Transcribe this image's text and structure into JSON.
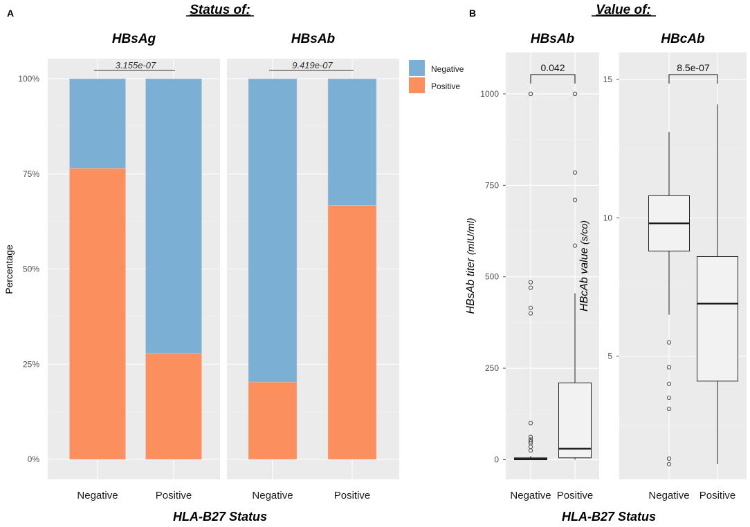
{
  "panel_a": {
    "letter": "A",
    "super_title": "Status of:",
    "y_axis_title": "Percentage",
    "x_axis_title": "HLA-B27 Status",
    "legend": [
      {
        "label": "Negative",
        "color": "#7bafd4"
      },
      {
        "label": "Positive",
        "color": "#fb8f5d"
      }
    ]
  },
  "panel_b": {
    "letter": "B",
    "super_title": "Value of:",
    "x_axis_title": "HLA-B27 Status"
  },
  "chart_data": [
    {
      "type": "bar",
      "stacked": true,
      "title": "HBsAg",
      "categories": [
        "Negative",
        "Positive"
      ],
      "series": [
        {
          "name": "Positive",
          "values": [
            76.5,
            27.8
          ],
          "color": "#fb8f5d"
        },
        {
          "name": "Negative",
          "values": [
            23.5,
            72.2
          ],
          "color": "#7bafd4"
        }
      ],
      "ylabel": "Percentage",
      "ylim": [
        0,
        100
      ],
      "yticks": [
        0,
        25,
        50,
        75,
        100
      ],
      "ytick_labels": [
        "0%",
        "25%",
        "50%",
        "75%",
        "100%"
      ],
      "annotation": "3.155e-07"
    },
    {
      "type": "bar",
      "stacked": true,
      "title": "HBsAb",
      "categories": [
        "Negative",
        "Positive"
      ],
      "series": [
        {
          "name": "Positive",
          "values": [
            20.3,
            66.7
          ],
          "color": "#fb8f5d"
        },
        {
          "name": "Negative",
          "values": [
            79.7,
            33.3
          ],
          "color": "#7bafd4"
        }
      ],
      "ylim": [
        0,
        100
      ],
      "annotation": "9.419e-07"
    },
    {
      "type": "box",
      "title": "HBsAb",
      "categories": [
        "Negative",
        "Positive"
      ],
      "ylabel_main": "HBsAb titer",
      "ylabel_unit": "(mIU/ml)",
      "ylim": [
        -35,
        1100
      ],
      "yticks": [
        0,
        250,
        500,
        750,
        1000
      ],
      "ytick_labels": [
        "0",
        "250",
        "500",
        "750",
        "1000"
      ],
      "boxes": [
        {
          "min": 0,
          "q1": 0,
          "median": 2,
          "q3": 5,
          "max": 10,
          "outliers": [
            1000,
            1000,
            485,
            470,
            415,
            400,
            100,
            62,
            55,
            50,
            45,
            35,
            25
          ]
        },
        {
          "min": 0,
          "q1": 5,
          "median": 30,
          "q3": 210,
          "max": 455,
          "outliers": [
            1000,
            1000,
            785,
            710,
            585
          ]
        }
      ],
      "annotation": "0.042"
    },
    {
      "type": "box",
      "title": "HBcAb",
      "categories": [
        "Negative",
        "Positive"
      ],
      "ylabel_main": "HBcAb value",
      "ylabel_unit": "(s/co)",
      "ylim": [
        0.8,
        15.8
      ],
      "yticks": [
        5,
        10,
        15
      ],
      "ytick_labels": [
        "5",
        "10",
        "15"
      ],
      "boxes": [
        {
          "min": 6.5,
          "q1": 8.8,
          "median": 9.8,
          "q3": 10.8,
          "max": 13.1,
          "outliers": [
            5.5,
            4.6,
            4.0,
            3.5,
            3.1,
            1.3,
            1.1
          ]
        },
        {
          "min": 1.1,
          "q1": 4.1,
          "median": 6.9,
          "q3": 8.6,
          "max": 14.1,
          "outliers": []
        }
      ],
      "annotation": "8.5e-07"
    }
  ]
}
